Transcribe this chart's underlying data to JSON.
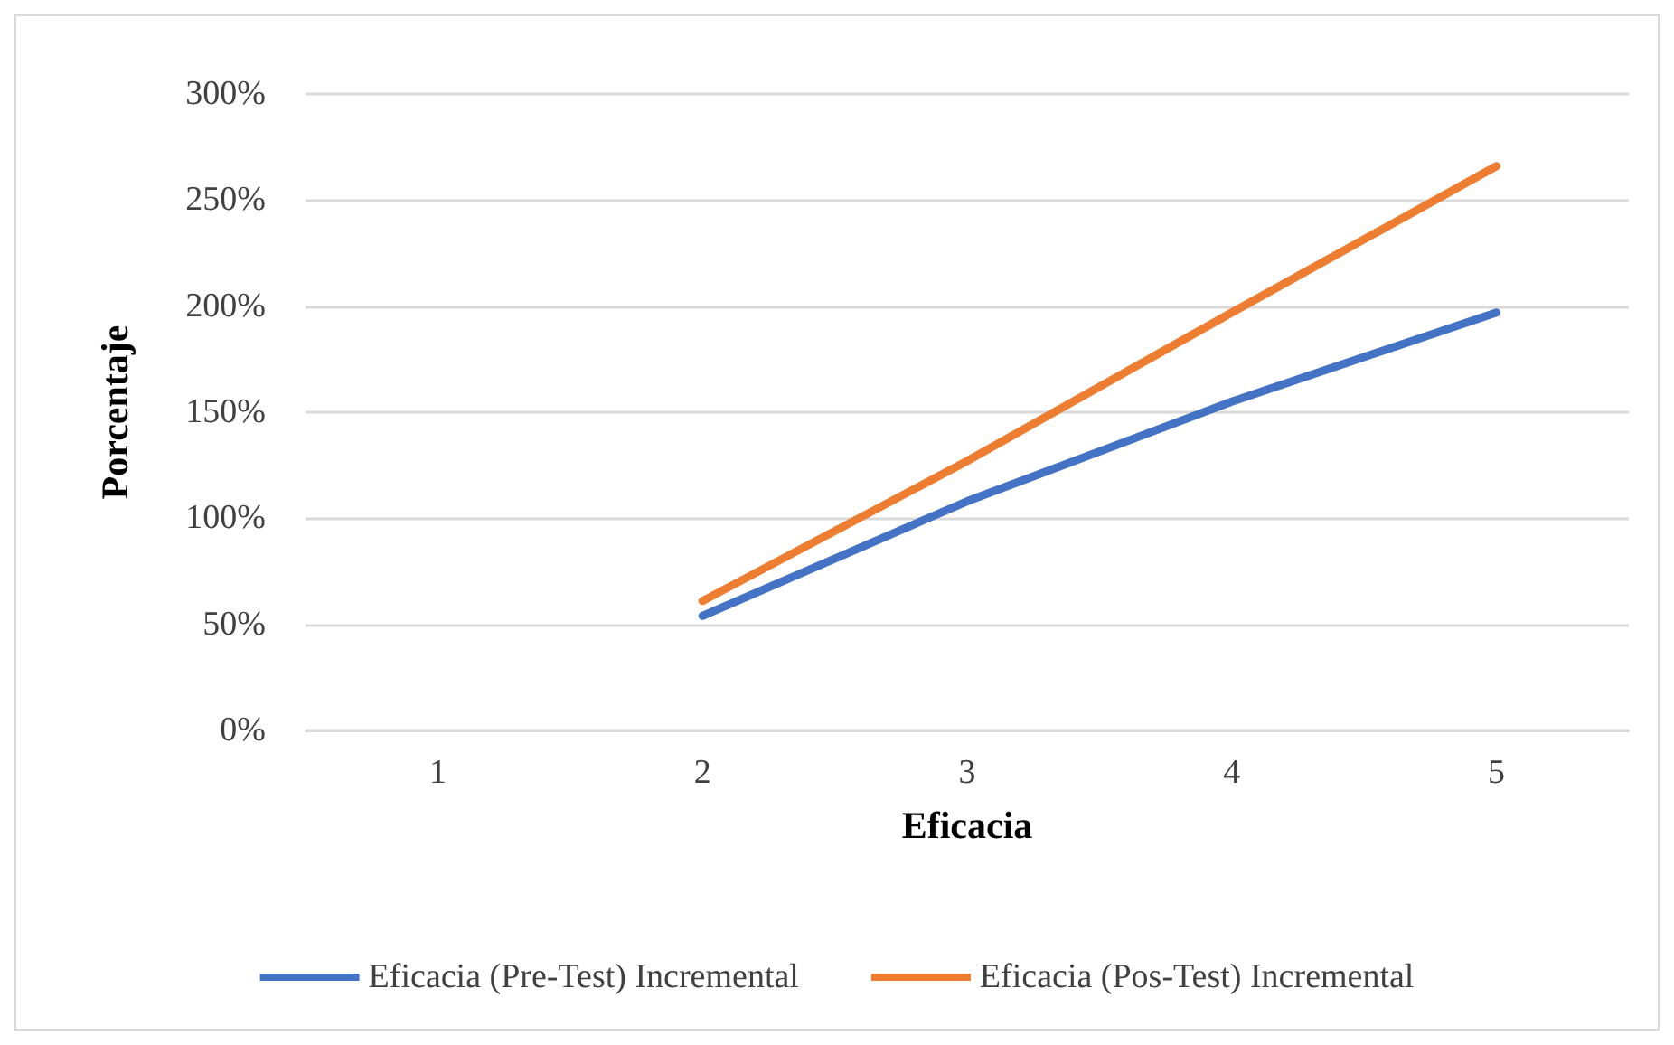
{
  "chart_data": {
    "type": "line",
    "xlabel": "Eficacia",
    "ylabel": "Porcentaje",
    "categories": [
      "1",
      "2",
      "3",
      "4",
      "5"
    ],
    "series": [
      {
        "name": "Eficacia (Pre-Test) Incremental",
        "color": "#4472c4",
        "values": [
          null,
          54,
          108,
          155,
          197
        ]
      },
      {
        "name": "Eficacia (Pos-Test) Incremental",
        "color": "#ed7d31",
        "values": [
          null,
          61,
          127,
          197,
          266
        ]
      }
    ],
    "ylim": [
      0,
      300
    ],
    "yticks": [
      {
        "value": 0,
        "label": "0%"
      },
      {
        "value": 50,
        "label": "50%"
      },
      {
        "value": 100,
        "label": "100%"
      },
      {
        "value": 150,
        "label": "150%"
      },
      {
        "value": 200,
        "label": "200%"
      },
      {
        "value": 250,
        "label": "250%"
      },
      {
        "value": 300,
        "label": "300%"
      }
    ],
    "grid": "y",
    "legend": "bottom",
    "marker": "none",
    "line_style": "solid"
  }
}
